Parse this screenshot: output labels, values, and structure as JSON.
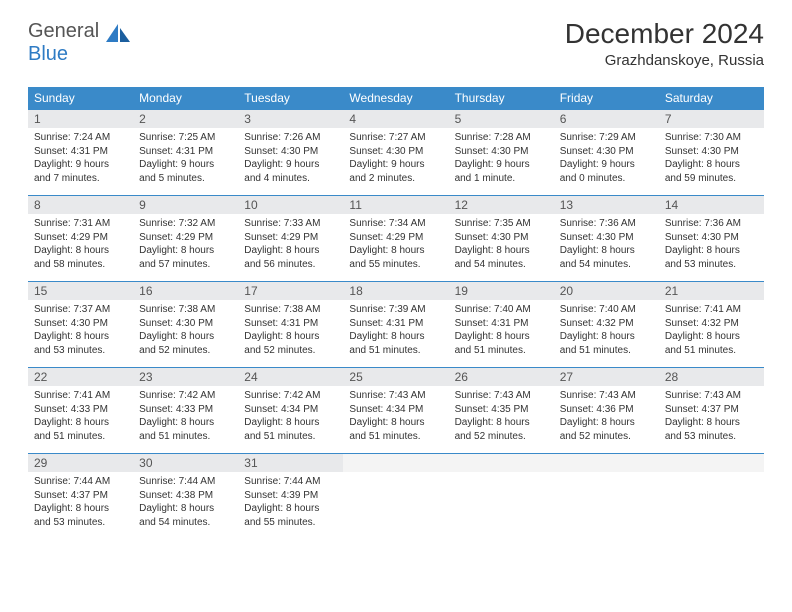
{
  "logo": {
    "word1": "General",
    "word2": "Blue"
  },
  "title": "December 2024",
  "location": "Grazhdanskoye, Russia",
  "colors": {
    "header_bg": "#3a8ac9",
    "header_text": "#ffffff",
    "daynum_bg": "#e8e9eb",
    "daynum_text": "#555555",
    "detail_text": "#333333",
    "logo_gray": "#555555",
    "logo_blue": "#2e7bc4",
    "row_border": "#3a8ac9"
  },
  "typography": {
    "title_fontsize": 28,
    "location_fontsize": 15,
    "dow_fontsize": 12,
    "daynum_fontsize": 12,
    "detail_fontsize": 10
  },
  "daysOfWeek": [
    "Sunday",
    "Monday",
    "Tuesday",
    "Wednesday",
    "Thursday",
    "Friday",
    "Saturday"
  ],
  "weeks": [
    [
      {
        "n": "1",
        "sr": "7:24 AM",
        "ss": "4:31 PM",
        "dl": "9 hours and 7 minutes."
      },
      {
        "n": "2",
        "sr": "7:25 AM",
        "ss": "4:31 PM",
        "dl": "9 hours and 5 minutes."
      },
      {
        "n": "3",
        "sr": "7:26 AM",
        "ss": "4:30 PM",
        "dl": "9 hours and 4 minutes."
      },
      {
        "n": "4",
        "sr": "7:27 AM",
        "ss": "4:30 PM",
        "dl": "9 hours and 2 minutes."
      },
      {
        "n": "5",
        "sr": "7:28 AM",
        "ss": "4:30 PM",
        "dl": "9 hours and 1 minute."
      },
      {
        "n": "6",
        "sr": "7:29 AM",
        "ss": "4:30 PM",
        "dl": "9 hours and 0 minutes."
      },
      {
        "n": "7",
        "sr": "7:30 AM",
        "ss": "4:30 PM",
        "dl": "8 hours and 59 minutes."
      }
    ],
    [
      {
        "n": "8",
        "sr": "7:31 AM",
        "ss": "4:29 PM",
        "dl": "8 hours and 58 minutes."
      },
      {
        "n": "9",
        "sr": "7:32 AM",
        "ss": "4:29 PM",
        "dl": "8 hours and 57 minutes."
      },
      {
        "n": "10",
        "sr": "7:33 AM",
        "ss": "4:29 PM",
        "dl": "8 hours and 56 minutes."
      },
      {
        "n": "11",
        "sr": "7:34 AM",
        "ss": "4:29 PM",
        "dl": "8 hours and 55 minutes."
      },
      {
        "n": "12",
        "sr": "7:35 AM",
        "ss": "4:30 PM",
        "dl": "8 hours and 54 minutes."
      },
      {
        "n": "13",
        "sr": "7:36 AM",
        "ss": "4:30 PM",
        "dl": "8 hours and 54 minutes."
      },
      {
        "n": "14",
        "sr": "7:36 AM",
        "ss": "4:30 PM",
        "dl": "8 hours and 53 minutes."
      }
    ],
    [
      {
        "n": "15",
        "sr": "7:37 AM",
        "ss": "4:30 PM",
        "dl": "8 hours and 53 minutes."
      },
      {
        "n": "16",
        "sr": "7:38 AM",
        "ss": "4:30 PM",
        "dl": "8 hours and 52 minutes."
      },
      {
        "n": "17",
        "sr": "7:38 AM",
        "ss": "4:31 PM",
        "dl": "8 hours and 52 minutes."
      },
      {
        "n": "18",
        "sr": "7:39 AM",
        "ss": "4:31 PM",
        "dl": "8 hours and 51 minutes."
      },
      {
        "n": "19",
        "sr": "7:40 AM",
        "ss": "4:31 PM",
        "dl": "8 hours and 51 minutes."
      },
      {
        "n": "20",
        "sr": "7:40 AM",
        "ss": "4:32 PM",
        "dl": "8 hours and 51 minutes."
      },
      {
        "n": "21",
        "sr": "7:41 AM",
        "ss": "4:32 PM",
        "dl": "8 hours and 51 minutes."
      }
    ],
    [
      {
        "n": "22",
        "sr": "7:41 AM",
        "ss": "4:33 PM",
        "dl": "8 hours and 51 minutes."
      },
      {
        "n": "23",
        "sr": "7:42 AM",
        "ss": "4:33 PM",
        "dl": "8 hours and 51 minutes."
      },
      {
        "n": "24",
        "sr": "7:42 AM",
        "ss": "4:34 PM",
        "dl": "8 hours and 51 minutes."
      },
      {
        "n": "25",
        "sr": "7:43 AM",
        "ss": "4:34 PM",
        "dl": "8 hours and 51 minutes."
      },
      {
        "n": "26",
        "sr": "7:43 AM",
        "ss": "4:35 PM",
        "dl": "8 hours and 52 minutes."
      },
      {
        "n": "27",
        "sr": "7:43 AM",
        "ss": "4:36 PM",
        "dl": "8 hours and 52 minutes."
      },
      {
        "n": "28",
        "sr": "7:43 AM",
        "ss": "4:37 PM",
        "dl": "8 hours and 53 minutes."
      }
    ],
    [
      {
        "n": "29",
        "sr": "7:44 AM",
        "ss": "4:37 PM",
        "dl": "8 hours and 53 minutes."
      },
      {
        "n": "30",
        "sr": "7:44 AM",
        "ss": "4:38 PM",
        "dl": "8 hours and 54 minutes."
      },
      {
        "n": "31",
        "sr": "7:44 AM",
        "ss": "4:39 PM",
        "dl": "8 hours and 55 minutes."
      },
      null,
      null,
      null,
      null
    ]
  ]
}
